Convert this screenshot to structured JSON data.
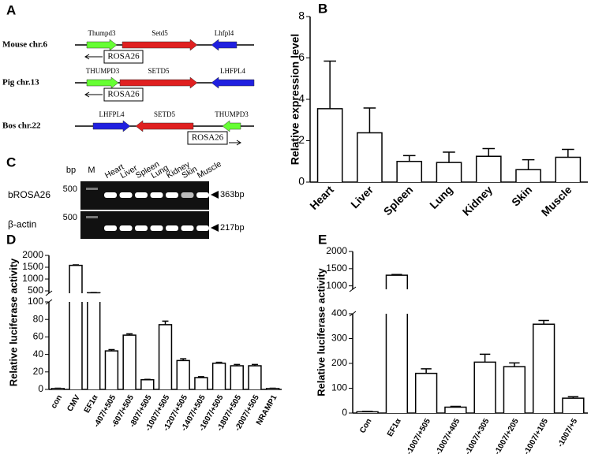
{
  "diagram": {
    "label": "A",
    "rows": [
      {
        "name": "Mouse chr.6",
        "genes": [
          "Thumpd3",
          "Setd5",
          "Lhfpl4"
        ],
        "locus": "ROSA26"
      },
      {
        "name": "Pig chr.13",
        "genes": [
          "THUMPD3",
          "SETD5",
          "LHFPL4"
        ],
        "locus": "ROSA26"
      },
      {
        "name": "Bos chr.22",
        "genes": [
          "LHFPL4",
          "SETD5",
          "THUMPD3"
        ],
        "locus": "ROSA26"
      }
    ]
  },
  "gel": {
    "label": "C",
    "size_unit": "bp",
    "marker": "M",
    "lanes": [
      "Heart",
      "Liver",
      "Spleen",
      "Lung",
      "Kidney",
      "Skin",
      "Muscle"
    ],
    "rows": [
      {
        "name": "bROSA26",
        "marker_size": "500",
        "band": "363bp"
      },
      {
        "name": "β-actin",
        "marker_size": "500",
        "band": "217bp"
      }
    ]
  },
  "chart_data": [
    {
      "type": "bar",
      "panel": "B",
      "y_label": "Relative expression level",
      "categories": [
        "Heart",
        "Liver",
        "Spleen",
        "Lung",
        "Kidney",
        "Skin",
        "Muscle"
      ],
      "values": [
        3.55,
        2.38,
        1.0,
        0.95,
        1.25,
        0.6,
        1.2
      ],
      "errors": [
        2.3,
        1.2,
        0.28,
        0.5,
        0.37,
        0.48,
        0.38
      ],
      "color": "#ffffff",
      "ylim": [
        0,
        8
      ],
      "yticks": [
        0,
        2,
        4,
        6,
        8
      ]
    },
    {
      "type": "bar",
      "panel": "D",
      "y_label": "Relative luciferase activity",
      "categories": [
        "con",
        "CMV",
        "EF1α",
        "-407/+505",
        "-607/+505",
        "-807/+505",
        "-1007/+505",
        "-1207/+505",
        "-1407/+505",
        "-1607/+505",
        "-1807/+505",
        "-2007/+505",
        "NRAMP1"
      ],
      "values": [
        1,
        1580,
        420,
        44,
        62,
        11,
        74,
        33,
        13.5,
        30,
        27,
        27,
        1
      ],
      "errors": [
        0.3,
        20,
        10,
        1.5,
        1.5,
        0.5,
        4,
        2,
        1,
        1,
        1.5,
        1.5,
        0.3
      ],
      "color": "#ffffff",
      "ylim": [
        0,
        2000
      ],
      "axis_break": [
        100,
        400
      ],
      "yticks": [
        0,
        20,
        40,
        60,
        80,
        100,
        500,
        1000,
        1500,
        2000
      ]
    },
    {
      "type": "bar",
      "panel": "E",
      "y_label": "Relative luciferase  activity",
      "categories": [
        "Con",
        "EF1α",
        "-1007/+505",
        "-1007/+405",
        "-1007/+305",
        "-1007/+205",
        "-1007/+105",
        "-1007/+5"
      ],
      "values": [
        5,
        1310,
        160,
        24,
        205,
        187,
        358,
        60
      ],
      "errors": [
        2,
        20,
        18,
        3,
        32,
        15,
        15,
        6
      ],
      "color": "#ffffff",
      "ylim": [
        0,
        2000
      ],
      "axis_break": [
        400,
        900
      ],
      "yticks": [
        0,
        100,
        200,
        300,
        400,
        1000,
        1500,
        2000
      ]
    }
  ]
}
